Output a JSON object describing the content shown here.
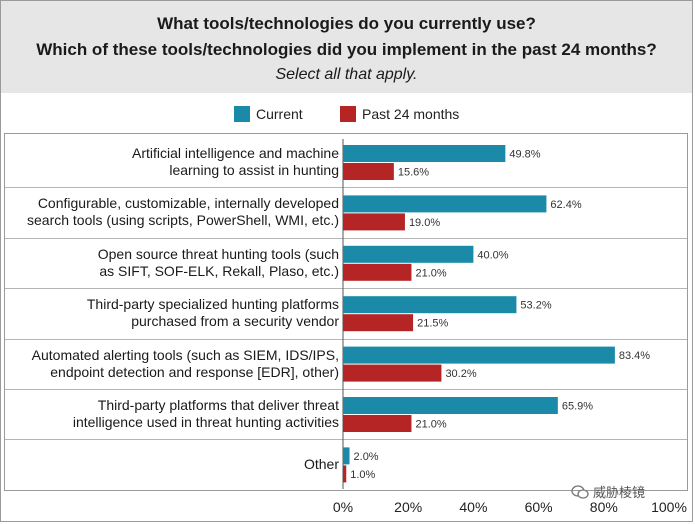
{
  "header": {
    "line1": "What tools/technologies do you currently use?",
    "line2": "Which of these tools/technologies did you implement in the past 24 months?",
    "line3": "Select all that apply."
  },
  "colors": {
    "current": "#1a8aa8",
    "past": "#b52525",
    "header_bg": "#e6e6e6"
  },
  "watermark": {
    "text": "威胁棱镜",
    "icon": "wechat-icon"
  },
  "chart_data": {
    "type": "bar",
    "orientation": "horizontal",
    "categories": [
      [
        "Artificial intelligence and machine",
        "learning to assist in hunting"
      ],
      [
        "Configurable, customizable, internally developed",
        "search tools (using scripts, PowerShell, WMI, etc.)"
      ],
      [
        "Open source threat hunting tools (such",
        "as SIFT, SOF-ELK, Rekall, Plaso, etc.)"
      ],
      [
        "Third-party specialized hunting platforms",
        "purchased from a security vendor"
      ],
      [
        "Automated alerting tools (such as SIEM, IDS/IPS,",
        "endpoint detection and response [EDR], other)"
      ],
      [
        "Third-party platforms that deliver threat",
        "intelligence used in threat hunting activities"
      ],
      [
        "Other"
      ]
    ],
    "series": [
      {
        "name": "Current",
        "color": "#1a8aa8",
        "values": [
          49.8,
          62.4,
          40.0,
          53.2,
          83.4,
          65.9,
          2.0
        ],
        "labels": [
          "49.8%",
          "62.4%",
          "40.0%",
          "53.2%",
          "83.4%",
          "65.9%",
          "2.0%"
        ]
      },
      {
        "name": "Past 24 months",
        "color": "#b52525",
        "values": [
          15.6,
          19.0,
          21.0,
          21.5,
          30.2,
          21.0,
          1.0
        ],
        "labels": [
          "15.6%",
          "19.0%",
          "21.0%",
          "21.5%",
          "30.2%",
          "21.0%",
          "1.0%"
        ]
      }
    ],
    "xlim": [
      0,
      100
    ],
    "xticks": [
      "0%",
      "20%",
      "40%",
      "60%",
      "80%",
      "100%"
    ],
    "legend_position": "top-center"
  }
}
